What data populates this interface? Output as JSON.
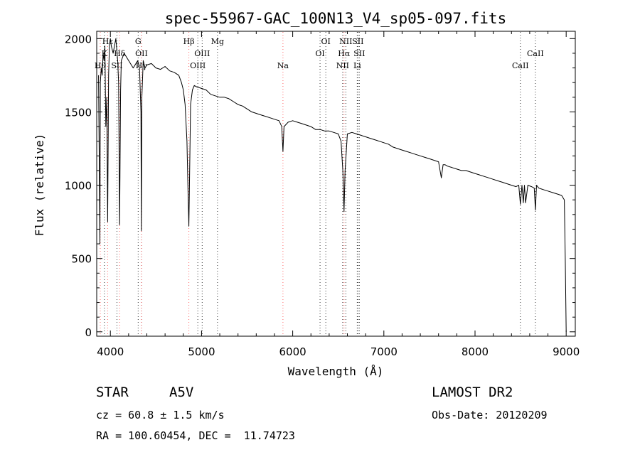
{
  "chart_data": {
    "type": "line",
    "title": "spec-55967-GAC_100N13_V4_sp05-097.fits",
    "xlabel": "Wavelength (Å)",
    "ylabel": "Flux (relative)",
    "xlim": [
      3850,
      9100
    ],
    "ylim": [
      -30,
      2050
    ],
    "xticks": [
      4000,
      5000,
      6000,
      7000,
      8000,
      9000
    ],
    "yticks": [
      0,
      500,
      1000,
      1500,
      2000
    ],
    "grid": false,
    "series": [
      {
        "x": [
          3870,
          3885,
          3890,
          3900,
          3910,
          3920,
          3930,
          3940,
          3950,
          3960,
          3970,
          3980,
          3990,
          4000,
          4010,
          4030,
          4060,
          4080,
          4090,
          4101,
          4112,
          4120,
          4150,
          4200,
          4250,
          4300,
          4320,
          4335,
          4340,
          4345,
          4360,
          4380,
          4400,
          4450,
          4500,
          4550,
          4600,
          4650,
          4700,
          4750,
          4780,
          4800,
          4820,
          4840,
          4850,
          4861,
          4872,
          4880,
          4900,
          4920,
          4950,
          5000,
          5050,
          5100,
          5150,
          5200,
          5250,
          5300,
          5350,
          5400,
          5450,
          5500,
          5550,
          5600,
          5650,
          5700,
          5750,
          5800,
          5850,
          5880,
          5893,
          5905,
          5950,
          6000,
          6050,
          6100,
          6150,
          6200,
          6250,
          6300,
          6350,
          6400,
          6450,
          6500,
          6530,
          6550,
          6563,
          6575,
          6600,
          6650,
          6700,
          6750,
          6800,
          6850,
          6900,
          6950,
          7000,
          7050,
          7100,
          7150,
          7200,
          7250,
          7300,
          7350,
          7400,
          7450,
          7500,
          7550,
          7600,
          7630,
          7650,
          7670,
          7700,
          7750,
          7800,
          7850,
          7900,
          7950,
          8000,
          8050,
          8100,
          8150,
          8200,
          8250,
          8300,
          8350,
          8400,
          8450,
          8480,
          8498,
          8515,
          8530,
          8542,
          8555,
          8580,
          8620,
          8650,
          8662,
          8675,
          8700,
          8750,
          8800,
          8850,
          8900,
          8950,
          8980,
          8990,
          9000
        ],
        "y": [
          1750,
          600,
          1700,
          1800,
          1750,
          1900,
          1850,
          1950,
          1400,
          1600,
          750,
          1750,
          1950,
          2000,
          1950,
          1900,
          2000,
          1850,
          1700,
          730,
          1650,
          1850,
          1900,
          1850,
          1800,
          1850,
          1800,
          1500,
          690,
          1600,
          1850,
          1800,
          1820,
          1830,
          1800,
          1790,
          1810,
          1780,
          1770,
          1750,
          1700,
          1650,
          1550,
          1300,
          1000,
          720,
          1200,
          1550,
          1650,
          1680,
          1670,
          1660,
          1650,
          1620,
          1610,
          1600,
          1600,
          1590,
          1570,
          1550,
          1540,
          1520,
          1500,
          1490,
          1480,
          1470,
          1460,
          1450,
          1440,
          1400,
          1230,
          1400,
          1430,
          1440,
          1430,
          1420,
          1410,
          1400,
          1380,
          1380,
          1370,
          1370,
          1360,
          1350,
          1300,
          1100,
          820,
          1100,
          1350,
          1360,
          1350,
          1340,
          1330,
          1320,
          1310,
          1300,
          1290,
          1280,
          1260,
          1250,
          1240,
          1230,
          1220,
          1210,
          1200,
          1190,
          1180,
          1170,
          1160,
          1050,
          1140,
          1140,
          1130,
          1120,
          1110,
          1100,
          1100,
          1090,
          1080,
          1070,
          1060,
          1050,
          1040,
          1030,
          1020,
          1010,
          1000,
          990,
          1000,
          870,
          1000,
          880,
          1000,
          880,
          1000,
          990,
          980,
          830,
          1000,
          980,
          970,
          960,
          950,
          940,
          930,
          900,
          500,
          0
        ]
      }
    ],
    "lines": [
      {
        "label": "Hε",
        "wavelength": 3970,
        "row": 1,
        "color": "#ff6666"
      },
      {
        "label": "K",
        "wavelength": 3934,
        "row": 2,
        "color": "#333333"
      },
      {
        "label": "Hδ",
        "wavelength": 4101,
        "row": 2,
        "color": "#ff6666"
      },
      {
        "label": "Hθ",
        "wavelength": 3889,
        "row": 3,
        "color": "#ff6666"
      },
      {
        "label": "SII",
        "wavelength": 4072,
        "row": 3,
        "color": "#333333"
      },
      {
        "label": "G",
        "wavelength": 4305,
        "row": 1,
        "color": "#333333"
      },
      {
        "label": "OII",
        "wavelength": 4341,
        "row": 2,
        "color": "#333333"
      },
      {
        "label": "Hγ",
        "wavelength": 4340,
        "row": 3,
        "color": "#ff6666"
      },
      {
        "label": "Hβ",
        "wavelength": 4861,
        "row": 1,
        "color": "#ff6666"
      },
      {
        "label": "OIII",
        "wavelength": 5007,
        "row": 2,
        "color": "#333333"
      },
      {
        "label": "OIII",
        "wavelength": 4959,
        "row": 3,
        "color": "#333333"
      },
      {
        "label": "Mg",
        "wavelength": 5175,
        "row": 1,
        "color": "#333333"
      },
      {
        "label": "Na",
        "wavelength": 5893,
        "row": 3,
        "color": "#ff6666"
      },
      {
        "label": "OI",
        "wavelength": 6363,
        "row": 1,
        "color": "#333333"
      },
      {
        "label": "OI",
        "wavelength": 6300,
        "row": 2,
        "color": "#333333"
      },
      {
        "label": "NII",
        "wavelength": 6583,
        "row": 1,
        "color": "#333333"
      },
      {
        "label": "SII",
        "wavelength": 6716,
        "row": 1,
        "color": "#333333"
      },
      {
        "label": "Hα",
        "wavelength": 6563,
        "row": 2,
        "color": "#ff6666"
      },
      {
        "label": "SII",
        "wavelength": 6731,
        "row": 2,
        "color": "#333333"
      },
      {
        "label": "NII",
        "wavelength": 6548,
        "row": 3,
        "color": "#333333"
      },
      {
        "label": "Li",
        "wavelength": 6708,
        "row": 3,
        "color": "#333333"
      },
      {
        "label": "CaII",
        "wavelength": 8662,
        "row": 2,
        "color": "#333333"
      },
      {
        "label": "CaII",
        "wavelength": 8498,
        "row": 3,
        "color": "#333333"
      }
    ]
  },
  "info": {
    "object_type": "STAR",
    "subclass": "A5V",
    "survey": "LAMOST DR2",
    "velocity": "cz = 60.8 ± 1.5 km/s",
    "obs_date": "Obs-Date: 20120209",
    "coords": "RA = 100.60454, DEC =  11.74723"
  }
}
